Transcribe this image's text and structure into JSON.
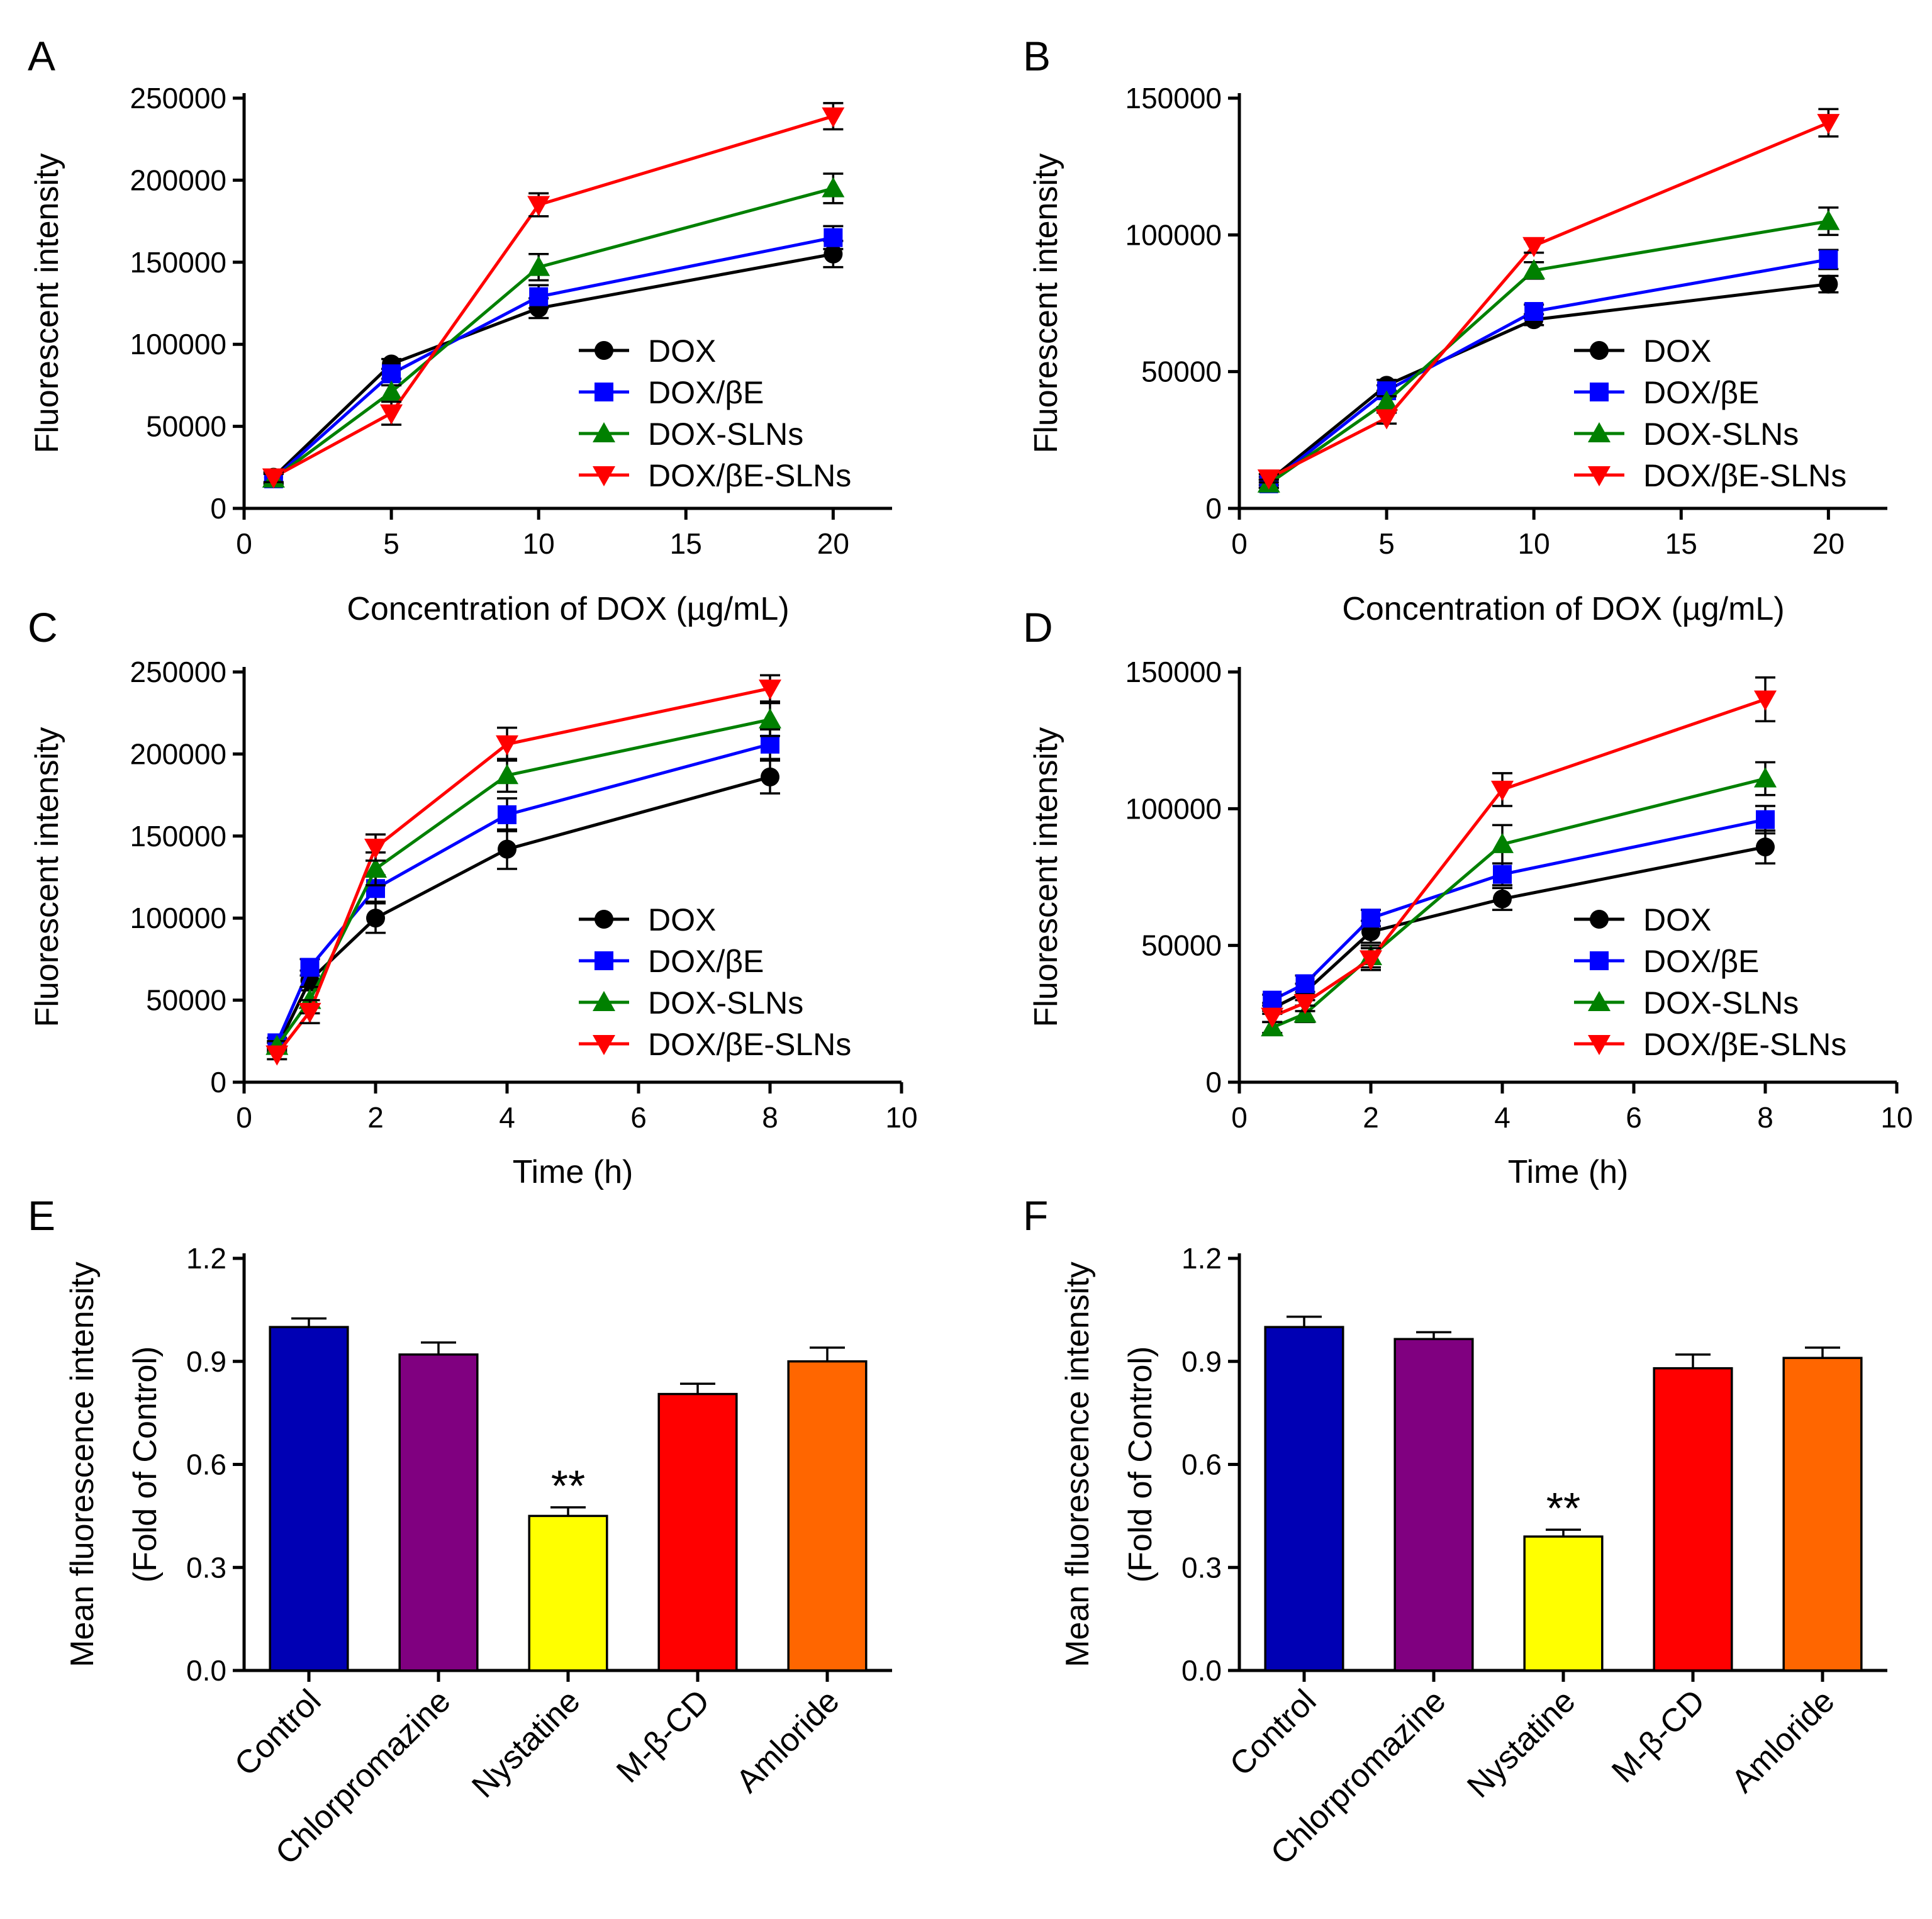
{
  "chart_data": [
    {
      "panel": "A",
      "type": "line",
      "xlabel": "Concentration of DOX (µg/mL)",
      "ylabel": "Fluorescent intensity",
      "xlim": [
        0,
        22
      ],
      "ylim": [
        0,
        250000
      ],
      "xticks": [
        0,
        5,
        10,
        15,
        20
      ],
      "yticks": [
        0,
        50000,
        100000,
        150000,
        200000,
        250000
      ],
      "x": [
        1,
        5,
        10,
        20
      ],
      "series": [
        {
          "name": "DOX",
          "color": "#000000",
          "marker": "circle",
          "values": [
            19000,
            88000,
            122000,
            155000
          ],
          "errors": [
            3000,
            3000,
            6000,
            8000
          ]
        },
        {
          "name": "DOX/βE",
          "color": "#0000ff",
          "marker": "square",
          "values": [
            18000,
            82000,
            129000,
            165000
          ],
          "errors": [
            3000,
            3000,
            7000,
            7000
          ]
        },
        {
          "name": "DOX-SLNs",
          "color": "#008000",
          "marker": "triangle-up",
          "values": [
            18000,
            71000,
            147000,
            195000
          ],
          "errors": [
            3000,
            4000,
            8000,
            9000
          ]
        },
        {
          "name": "DOX/βE-SLNs",
          "color": "#ff0000",
          "marker": "triangle-down",
          "values": [
            19000,
            58000,
            185000,
            239000
          ],
          "errors": [
            3000,
            7000,
            7000,
            8000
          ]
        }
      ]
    },
    {
      "panel": "B",
      "type": "line",
      "xlabel": "Concentration of DOX (µg/mL)",
      "ylabel": "Fluorescent intensity",
      "xlim": [
        0,
        22
      ],
      "ylim": [
        0,
        150000
      ],
      "xticks": [
        0,
        5,
        10,
        15,
        20
      ],
      "yticks": [
        0,
        50000,
        100000,
        150000
      ],
      "x": [
        1,
        5,
        10,
        20
      ],
      "series": [
        {
          "name": "DOX",
          "color": "#000000",
          "marker": "circle",
          "values": [
            10000,
            45000,
            69000,
            82000
          ],
          "errors": [
            1500,
            2000,
            2000,
            3000
          ]
        },
        {
          "name": "DOX/βE",
          "color": "#0000ff",
          "marker": "square",
          "values": [
            9000,
            43000,
            72000,
            91000
          ],
          "errors": [
            1500,
            2000,
            2500,
            3500
          ]
        },
        {
          "name": "DOX-SLNs",
          "color": "#008000",
          "marker": "triangle-up",
          "values": [
            9000,
            39000,
            87000,
            105000
          ],
          "errors": [
            1500,
            2000,
            3000,
            5000
          ]
        },
        {
          "name": "DOX/βE-SLNs",
          "color": "#ff0000",
          "marker": "triangle-down",
          "values": [
            11000,
            33000,
            96000,
            141000
          ],
          "errors": [
            1500,
            2000,
            2500,
            5000
          ]
        }
      ]
    },
    {
      "panel": "C",
      "type": "line",
      "xlabel": "Time (h)",
      "ylabel": "Fluorescent intensity",
      "xlim": [
        0,
        10
      ],
      "ylim": [
        0,
        250000
      ],
      "xticks": [
        0,
        2,
        4,
        6,
        8,
        10
      ],
      "yticks": [
        0,
        50000,
        100000,
        150000,
        200000,
        250000
      ],
      "x": [
        0.5,
        1,
        2,
        4,
        8
      ],
      "series": [
        {
          "name": "DOX",
          "color": "#000000",
          "marker": "circle",
          "values": [
            21000,
            62000,
            100000,
            142000,
            186000
          ],
          "errors": [
            3000,
            6000,
            9000,
            12000,
            10000
          ]
        },
        {
          "name": "DOX/βE",
          "color": "#0000ff",
          "marker": "square",
          "values": [
            24000,
            70000,
            118000,
            163000,
            206000
          ],
          "errors": [
            3000,
            5000,
            8000,
            10000,
            9000
          ]
        },
        {
          "name": "DOX-SLNs",
          "color": "#008000",
          "marker": "triangle-up",
          "values": [
            22000,
            50000,
            130000,
            187000,
            221000
          ],
          "errors": [
            3000,
            8000,
            10000,
            10000,
            10000
          ]
        },
        {
          "name": "DOX/βE-SLNs",
          "color": "#ff0000",
          "marker": "triangle-down",
          "values": [
            17000,
            43000,
            143000,
            206000,
            240000
          ],
          "errors": [
            3000,
            7000,
            8000,
            10000,
            8000
          ]
        }
      ]
    },
    {
      "panel": "D",
      "type": "line",
      "xlabel": "Time (h)",
      "ylabel": "Fluorescent intensity",
      "xlim": [
        0,
        10
      ],
      "ylim": [
        0,
        150000
      ],
      "xticks": [
        0,
        2,
        4,
        6,
        8,
        10
      ],
      "yticks": [
        0,
        50000,
        100000,
        150000
      ],
      "x": [
        0.5,
        1,
        2,
        4,
        8
      ],
      "series": [
        {
          "name": "DOX",
          "color": "#000000",
          "marker": "circle",
          "values": [
            27000,
            33000,
            55000,
            67000,
            86000
          ],
          "errors": [
            2000,
            3000,
            4000,
            4000,
            6000
          ]
        },
        {
          "name": "DOX/βE",
          "color": "#0000ff",
          "marker": "square",
          "values": [
            30000,
            36000,
            60000,
            76000,
            96000
          ],
          "errors": [
            2000,
            3000,
            3000,
            4000,
            5000
          ]
        },
        {
          "name": "DOX-SLNs",
          "color": "#008000",
          "marker": "triangle-up",
          "values": [
            20000,
            25000,
            46000,
            87000,
            111000
          ],
          "errors": [
            2000,
            3000,
            4000,
            7000,
            6000
          ]
        },
        {
          "name": "DOX/βE-SLNs",
          "color": "#ff0000",
          "marker": "triangle-down",
          "values": [
            24000,
            29000,
            45000,
            107000,
            140000
          ],
          "errors": [
            2000,
            3000,
            4000,
            6000,
            8000
          ]
        }
      ]
    },
    {
      "panel": "E",
      "type": "bar",
      "ylabel": [
        "Mean fluorescence intensity",
        "(Fold of Control)"
      ],
      "ylim": [
        0,
        1.2
      ],
      "yticks": [
        "0.0",
        "0.3",
        "0.6",
        "0.9",
        "1.2"
      ],
      "categories": [
        "Control",
        "Chlorpromazine",
        "Nystatine",
        "M-β-CD",
        "Amloride"
      ],
      "values": [
        1.0,
        0.92,
        0.45,
        0.805,
        0.9
      ],
      "errors": [
        0.025,
        0.035,
        0.025,
        0.03,
        0.04
      ],
      "colors": [
        "#0000b4",
        "#800080",
        "#ffff00",
        "#ff0000",
        "#ff6600"
      ],
      "significance": [
        "",
        "",
        "**",
        "",
        ""
      ]
    },
    {
      "panel": "F",
      "type": "bar",
      "ylabel": [
        "Mean fluorescence intensity",
        "(Fold of Control)"
      ],
      "ylim": [
        0,
        1.2
      ],
      "yticks": [
        "0.0",
        "0.3",
        "0.6",
        "0.9",
        "1.2"
      ],
      "categories": [
        "Control",
        "Chlorpromazine",
        "Nystatine",
        "M-β-CD",
        "Amloride"
      ],
      "values": [
        1.0,
        0.965,
        0.39,
        0.88,
        0.91
      ],
      "errors": [
        0.03,
        0.02,
        0.02,
        0.04,
        0.03
      ],
      "colors": [
        "#0000b4",
        "#800080",
        "#ffff00",
        "#ff0000",
        "#ff6600"
      ],
      "significance": [
        "",
        "",
        "**",
        "",
        ""
      ]
    }
  ]
}
